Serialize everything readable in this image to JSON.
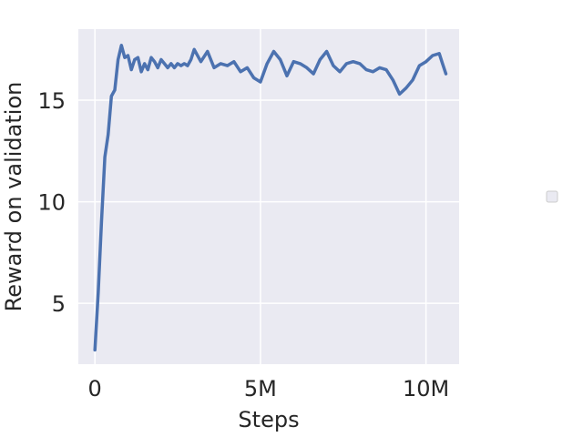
{
  "chart_data": {
    "type": "line",
    "title": "",
    "xlabel": "Steps",
    "ylabel": "Reward on validation",
    "xlim": [
      -0.5,
      11.0
    ],
    "ylim": [
      2.0,
      18.5
    ],
    "x_unit_note": "millions of steps",
    "xticks": [
      {
        "value": 0,
        "label": "0"
      },
      {
        "value": 5,
        "label": "5M"
      },
      {
        "value": 10,
        "label": "10M"
      }
    ],
    "yticks": [
      {
        "value": 5,
        "label": "5"
      },
      {
        "value": 10,
        "label": "10"
      },
      {
        "value": 15,
        "label": "15"
      }
    ],
    "grid": true,
    "background": "#eaeaf2",
    "legend": {
      "placement": "right",
      "entries": []
    },
    "series": [
      {
        "color": "#4c72b0",
        "x": [
          0.0,
          0.1,
          0.2,
          0.3,
          0.4,
          0.5,
          0.6,
          0.7,
          0.8,
          0.9,
          1.0,
          1.1,
          1.2,
          1.3,
          1.4,
          1.5,
          1.6,
          1.7,
          1.8,
          1.9,
          2.0,
          2.1,
          2.2,
          2.3,
          2.4,
          2.5,
          2.6,
          2.7,
          2.8,
          2.9,
          3.0,
          3.2,
          3.4,
          3.6,
          3.8,
          4.0,
          4.2,
          4.4,
          4.6,
          4.8,
          5.0,
          5.2,
          5.4,
          5.6,
          5.8,
          6.0,
          6.2,
          6.4,
          6.6,
          6.8,
          7.0,
          7.2,
          7.4,
          7.6,
          7.8,
          8.0,
          8.2,
          8.4,
          8.6,
          8.8,
          9.0,
          9.2,
          9.4,
          9.6,
          9.8,
          10.0,
          10.2,
          10.4,
          10.5,
          10.6
        ],
        "values": [
          2.7,
          5.5,
          9.0,
          12.2,
          13.3,
          15.2,
          15.5,
          17.0,
          17.7,
          17.1,
          17.2,
          16.5,
          17.0,
          17.1,
          16.4,
          16.8,
          16.5,
          17.1,
          16.9,
          16.6,
          17.0,
          16.8,
          16.6,
          16.8,
          16.6,
          16.8,
          16.7,
          16.8,
          16.7,
          17.0,
          17.5,
          16.9,
          17.4,
          16.6,
          16.8,
          16.7,
          16.9,
          16.4,
          16.6,
          16.1,
          15.9,
          16.8,
          17.4,
          17.0,
          16.2,
          16.9,
          16.8,
          16.6,
          16.3,
          17.0,
          17.4,
          16.7,
          16.4,
          16.8,
          16.9,
          16.8,
          16.5,
          16.4,
          16.6,
          16.5,
          16.0,
          15.3,
          15.6,
          16.0,
          16.7,
          16.9,
          17.2,
          17.3,
          16.8,
          16.3
        ]
      }
    ]
  }
}
